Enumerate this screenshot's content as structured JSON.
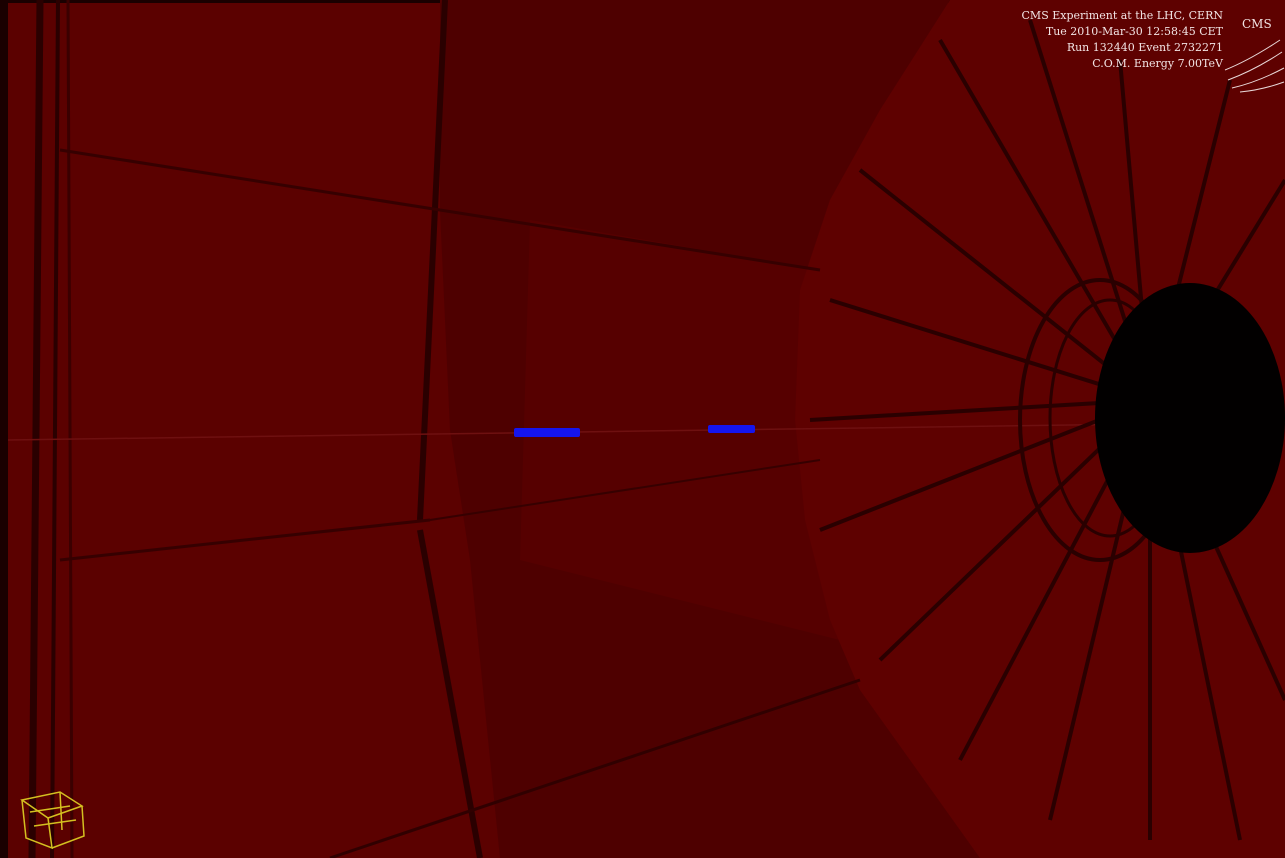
{
  "event_info": {
    "line1": "CMS Experiment at the LHC, CERN",
    "line2": "Tue 2010-Mar-30 12:58:45 CET",
    "line3": "Run 132440 Event 2732271",
    "line4": "C.O.M. Energy 7.00TeV"
  },
  "logo": {
    "text": "CMS"
  },
  "colors": {
    "background": "#5a0000",
    "detector_shade": "#4a0000",
    "detector_dark": "#2a0000",
    "track_hits": "#1515ee",
    "axes_widget": "#d4c020"
  },
  "icons": {
    "experiment_logo": "cms-logo-icon",
    "orientation_axes": "orientation-axes-icon"
  }
}
